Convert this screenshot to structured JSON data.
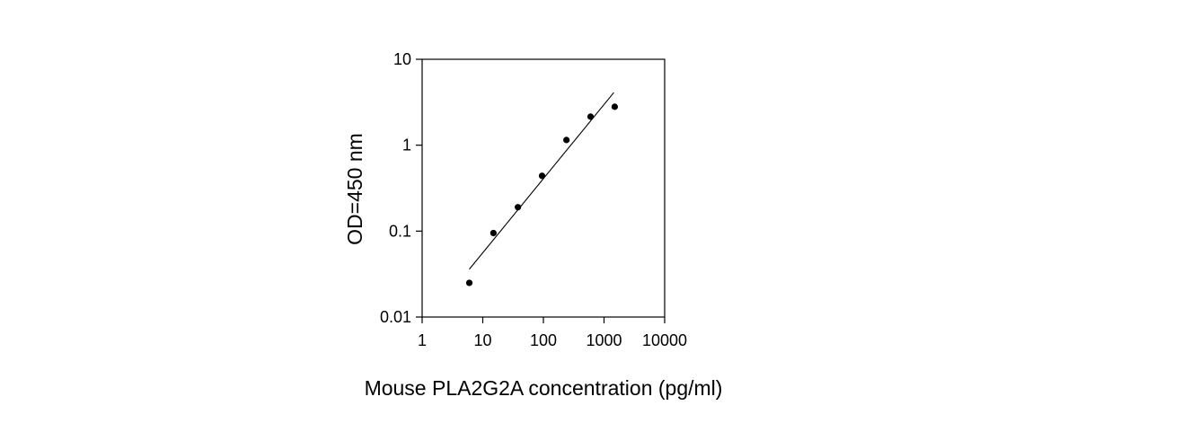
{
  "chart_data": {
    "type": "scatter",
    "title": "",
    "xlabel": "Mouse PLA2G2A concentration (pg/ml)",
    "ylabel": "OD=450 nm",
    "x_scale": "log",
    "y_scale": "log",
    "xlim": [
      1,
      10000
    ],
    "ylim": [
      0.01,
      10
    ],
    "x_ticks": [
      1,
      10,
      100,
      1000,
      10000
    ],
    "x_tick_labels": [
      "1",
      "10",
      "100",
      "1000",
      "10000"
    ],
    "y_ticks": [
      0.01,
      0.1,
      1,
      10
    ],
    "y_tick_labels": [
      "0.01",
      "0.1",
      "1",
      "10"
    ],
    "grid": false,
    "legend": "none",
    "colors": {
      "points": "#000000",
      "fit_line": "#000000",
      "axes": "#000000"
    },
    "series": [
      {
        "values": [
          {
            "x": 6.0,
            "y": 0.025
          },
          {
            "x": 15.0,
            "y": 0.095
          },
          {
            "x": 38.0,
            "y": 0.19
          },
          {
            "x": 95.0,
            "y": 0.44
          },
          {
            "x": 240.0,
            "y": 1.15
          },
          {
            "x": 600.0,
            "y": 2.15
          },
          {
            "x": 1500.0,
            "y": 2.8
          }
        ]
      }
    ],
    "fit_line": {
      "points": [
        {
          "x": 6.0,
          "y": 0.036
        },
        {
          "x": 1450.0,
          "y": 4.1
        }
      ]
    }
  }
}
